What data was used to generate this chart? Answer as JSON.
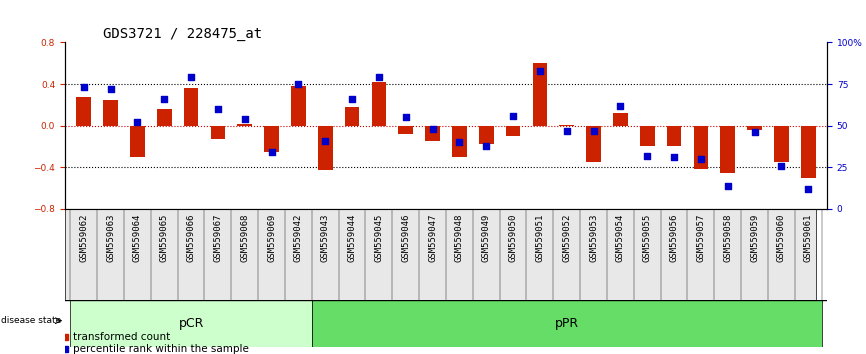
{
  "title": "GDS3721 / 228475_at",
  "samples": [
    "GSM559062",
    "GSM559063",
    "GSM559064",
    "GSM559065",
    "GSM559066",
    "GSM559067",
    "GSM559068",
    "GSM559069",
    "GSM559042",
    "GSM559043",
    "GSM559044",
    "GSM559045",
    "GSM559046",
    "GSM559047",
    "GSM559048",
    "GSM559049",
    "GSM559050",
    "GSM559051",
    "GSM559052",
    "GSM559053",
    "GSM559054",
    "GSM559055",
    "GSM559056",
    "GSM559057",
    "GSM559058",
    "GSM559059",
    "GSM559060",
    "GSM559061"
  ],
  "bar_values": [
    0.28,
    0.25,
    -0.3,
    0.16,
    0.36,
    -0.13,
    0.02,
    -0.25,
    0.38,
    -0.43,
    0.18,
    0.42,
    -0.08,
    -0.15,
    -0.3,
    -0.18,
    -0.1,
    0.6,
    0.01,
    -0.35,
    0.12,
    -0.2,
    -0.2,
    -0.42,
    -0.46,
    -0.04,
    -0.35,
    -0.5
  ],
  "dot_values": [
    73,
    72,
    52,
    66,
    79,
    60,
    54,
    34,
    75,
    41,
    66,
    79,
    55,
    48,
    40,
    38,
    56,
    83,
    47,
    47,
    62,
    32,
    31,
    30,
    14,
    46,
    26,
    12
  ],
  "pCR_count": 9,
  "pPR_count": 19,
  "bar_color": "#cc2200",
  "dot_color": "#0000cc",
  "dotted_line_color": "#000000",
  "zero_line_color": "#cc0000",
  "ylim_left": [
    -0.8,
    0.8
  ],
  "yticks_left": [
    -0.8,
    -0.4,
    0.0,
    0.4,
    0.8
  ],
  "yticks_right": [
    0,
    25,
    50,
    75,
    100
  ],
  "ylabel_left_color": "#cc2200",
  "ylabel_right_color": "#0000cc",
  "pCR_color": "#ccffcc",
  "pPR_color": "#66dd66",
  "label_bar": "transformed count",
  "label_dot": "percentile rank within the sample",
  "bg_color": "#ffffff",
  "title_fontsize": 10,
  "tick_fontsize": 6.5,
  "bar_width": 0.55,
  "dot_size": 18
}
